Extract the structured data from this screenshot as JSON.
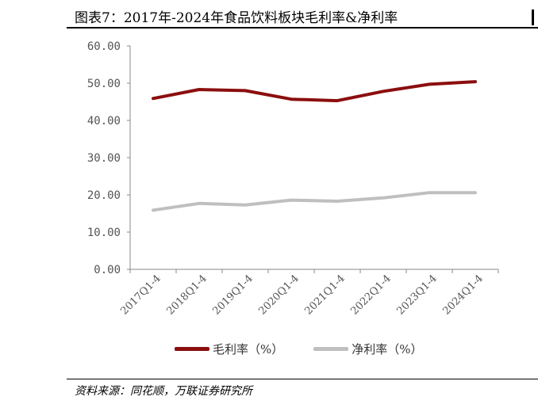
{
  "header": {
    "title": "图表7：2017年-2024年食品饮料板块毛利率&净利率"
  },
  "chart_data": {
    "type": "line",
    "categories": [
      "2017Q1-4",
      "2018Q1-4",
      "2019Q1-4",
      "2020Q1-4",
      "2021Q1-4",
      "2022Q1-4",
      "2023Q1-4",
      "2024Q1-4"
    ],
    "series": [
      {
        "name": "毛利率（%）",
        "color": "#8B0E0E",
        "values": [
          45.9,
          48.3,
          48.0,
          45.7,
          45.3,
          47.8,
          49.7,
          50.4
        ]
      },
      {
        "name": "净利率（%）",
        "color": "#BFBFBF",
        "values": [
          15.9,
          17.7,
          17.3,
          18.6,
          18.3,
          19.2,
          20.6,
          20.6
        ]
      }
    ],
    "y_ticks": [
      "0.00",
      "10.00",
      "20.00",
      "30.00",
      "40.00",
      "50.00",
      "60.00"
    ],
    "ylim": [
      0,
      60
    ],
    "grid": false,
    "legend_position": "bottom"
  },
  "footer": {
    "source": "资料来源：同花顺，万联证券研究所"
  }
}
